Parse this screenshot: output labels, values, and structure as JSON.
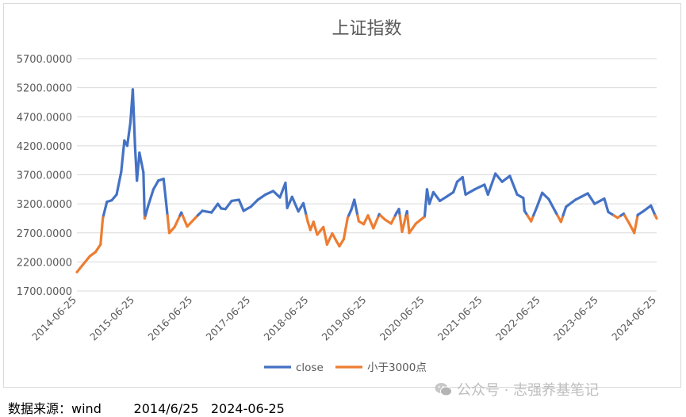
{
  "footer": {
    "label": "数据来源：",
    "source": "wind",
    "start": "2014/6/25",
    "end": "2024-06-25"
  },
  "watermark": {
    "text": "公众号 · 志强养基笔记",
    "icon": "wechat-icon"
  },
  "chart_data": {
    "type": "line",
    "title": "上证指数",
    "ylim": [
      1700,
      5700
    ],
    "yticks": [
      "1700.0000",
      "2200.0000",
      "2700.0000",
      "3200.0000",
      "3700.0000",
      "4200.0000",
      "4700.0000",
      "5200.0000",
      "5700.0000"
    ],
    "xticks": [
      "2014-06-25",
      "2015-06-25",
      "2016-06-25",
      "2017-06-25",
      "2018-06-25",
      "2019-06-25",
      "2020-06-25",
      "2021-06-25",
      "2022-06-25",
      "2023-06-25",
      "2024-06-25"
    ],
    "grid": true,
    "legend": "bottom",
    "threshold": 3000,
    "colors": {
      "close": "#4472c4",
      "below": "#ed7d31",
      "grid": "#d9d9d9"
    },
    "series": [
      {
        "name": "close",
        "color": "#4472c4"
      },
      {
        "name": "小于3000点",
        "color": "#ed7d31"
      }
    ],
    "x": [
      "2014-06-25",
      "2014-08-01",
      "2014-09-15",
      "2014-10-20",
      "2014-11-21",
      "2014-12-05",
      "2014-12-31",
      "2015-01-30",
      "2015-03-02",
      "2015-03-31",
      "2015-04-20",
      "2015-05-08",
      "2015-05-28",
      "2015-06-12",
      "2015-06-26",
      "2015-07-08",
      "2015-07-24",
      "2015-08-18",
      "2015-08-26",
      "2015-09-15",
      "2015-10-20",
      "2015-11-20",
      "2015-12-23",
      "2016-01-07",
      "2016-01-28",
      "2016-03-01",
      "2016-04-13",
      "2016-05-20",
      "2016-07-25",
      "2016-08-24",
      "2016-10-20",
      "2016-11-29",
      "2016-12-20",
      "2017-01-16",
      "2017-02-24",
      "2017-04-11",
      "2017-05-10",
      "2017-06-25",
      "2017-08-08",
      "2017-09-25",
      "2017-11-13",
      "2017-12-25",
      "2018-01-29",
      "2018-02-09",
      "2018-03-12",
      "2018-04-20",
      "2018-05-22",
      "2018-06-19",
      "2018-07-05",
      "2018-07-25",
      "2018-08-17",
      "2018-09-25",
      "2018-10-18",
      "2018-11-20",
      "2018-12-20",
      "2019-01-04",
      "2019-01-31",
      "2019-02-25",
      "2019-03-20",
      "2019-04-08",
      "2019-05-06",
      "2019-06-06",
      "2019-07-03",
      "2019-08-06",
      "2019-09-12",
      "2019-10-18",
      "2019-11-26",
      "2019-12-31",
      "2020-01-14",
      "2020-02-03",
      "2020-03-05",
      "2020-03-19",
      "2020-04-30",
      "2020-06-24",
      "2020-07-09",
      "2020-07-24",
      "2020-08-18",
      "2020-09-28",
      "2020-11-13",
      "2020-12-22",
      "2021-01-15",
      "2021-02-18",
      "2021-03-09",
      "2021-05-06",
      "2021-07-06",
      "2021-07-28",
      "2021-09-13",
      "2021-10-25",
      "2021-12-13",
      "2022-01-28",
      "2022-03-08",
      "2022-03-15",
      "2022-04-26",
      "2022-06-02",
      "2022-07-05",
      "2022-08-15",
      "2022-09-29",
      "2022-10-31",
      "2022-12-02",
      "2023-01-30",
      "2023-03-07",
      "2023-04-18",
      "2023-05-31",
      "2023-07-31",
      "2023-08-25",
      "2023-10-23",
      "2023-11-30",
      "2024-01-05",
      "2024-02-05",
      "2024-02-27",
      "2024-04-01",
      "2024-05-20",
      "2024-06-14",
      "2024-06-25"
    ],
    "values": [
      2025,
      2150,
      2300,
      2370,
      2500,
      2950,
      3235,
      3260,
      3360,
      3750,
      4290,
      4200,
      4600,
      5170,
      4200,
      3600,
      4080,
      3740,
      2950,
      3150,
      3450,
      3600,
      3630,
      3250,
      2700,
      2800,
      3050,
      2810,
      3000,
      3080,
      3050,
      3200,
      3120,
      3110,
      3250,
      3270,
      3080,
      3150,
      3270,
      3360,
      3420,
      3310,
      3560,
      3130,
      3320,
      3070,
      3210,
      2890,
      2750,
      2890,
      2670,
      2800,
      2500,
      2690,
      2540,
      2470,
      2590,
      2960,
      3100,
      3270,
      2900,
      2850,
      3000,
      2780,
      3020,
      2930,
      2860,
      3050,
      3110,
      2720,
      3070,
      2700,
      2860,
      2980,
      3450,
      3200,
      3400,
      3250,
      3330,
      3400,
      3580,
      3660,
      3360,
      3450,
      3530,
      3360,
      3720,
      3580,
      3680,
      3360,
      3300,
      3080,
      2900,
      3150,
      3390,
      3280,
      3050,
      2890,
      3150,
      3270,
      3320,
      3380,
      3200,
      3290,
      3060,
      2960,
      3030,
      2860,
      2700,
      3010,
      3070,
      3170,
      3010,
      2950
    ]
  }
}
